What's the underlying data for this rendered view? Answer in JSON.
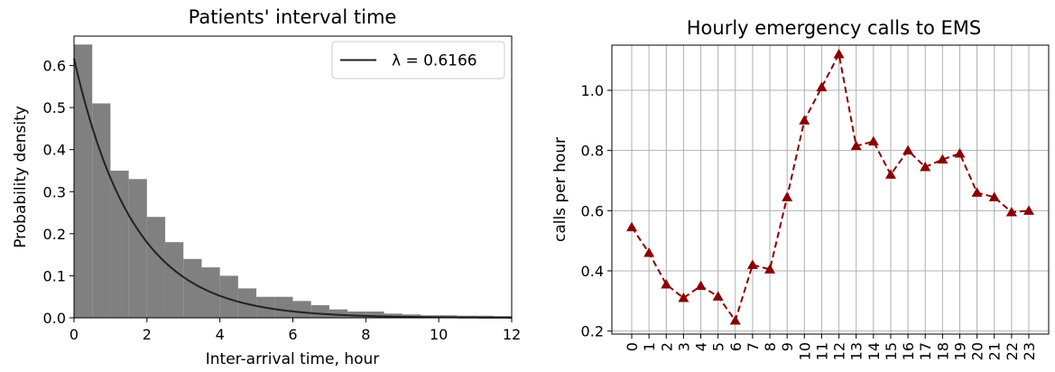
{
  "chart_data": [
    {
      "type": "bar",
      "title": "Patients' interval time",
      "xlabel": "Inter-arrival time, hour",
      "ylabel": "Probability density",
      "xlim": [
        0,
        12
      ],
      "ylim": [
        0,
        0.67
      ],
      "xticks": [
        "0",
        "2",
        "4",
        "6",
        "8",
        "10",
        "12"
      ],
      "yticks": [
        "0.0",
        "0.1",
        "0.2",
        "0.3",
        "0.4",
        "0.5",
        "0.6"
      ],
      "grid": false,
      "legend_placement": "top-right",
      "bar_color": "#808080",
      "line_color": "#222222",
      "bin_width": 0.5,
      "histogram": {
        "bin_starts": [
          0,
          0.5,
          1,
          1.5,
          2,
          2.5,
          3,
          3.5,
          4,
          4.5,
          5,
          5.5,
          6,
          6.5,
          7,
          7.5,
          8,
          8.5,
          9,
          9.5,
          10,
          10.5,
          11,
          11.5
        ],
        "density": [
          0.65,
          0.51,
          0.35,
          0.33,
          0.24,
          0.18,
          0.14,
          0.12,
          0.1,
          0.07,
          0.05,
          0.05,
          0.04,
          0.03,
          0.02,
          0.015,
          0.015,
          0.01,
          0.008,
          0.006,
          0.006,
          0.005,
          0.005,
          0.004
        ]
      },
      "fit": {
        "label": "λ = 0.6166",
        "lambda": 0.6166
      }
    },
    {
      "type": "line",
      "title": "Hourly emergency calls to EMS",
      "xlabel": "",
      "ylabel": "calls per hour",
      "ylim": [
        0.19,
        1.15
      ],
      "yticks": [
        "0.2",
        "0.4",
        "0.6",
        "0.8",
        "1.0"
      ],
      "grid": true,
      "line_style": "dashed",
      "marker": "triangle",
      "line_color": "#8b0000",
      "categories": [
        "0",
        "1",
        "2",
        "3",
        "4",
        "5",
        "6",
        "7",
        "8",
        "9",
        "10",
        "11",
        "12",
        "13",
        "14",
        "15",
        "16",
        "17",
        "18",
        "19",
        "20",
        "21",
        "22",
        "23"
      ],
      "values": [
        0.545,
        0.46,
        0.355,
        0.31,
        0.35,
        0.315,
        0.235,
        0.42,
        0.405,
        0.645,
        0.9,
        1.01,
        1.12,
        0.815,
        0.83,
        0.72,
        0.8,
        0.745,
        0.77,
        0.79,
        0.66,
        0.645,
        0.595,
        0.6
      ]
    }
  ]
}
